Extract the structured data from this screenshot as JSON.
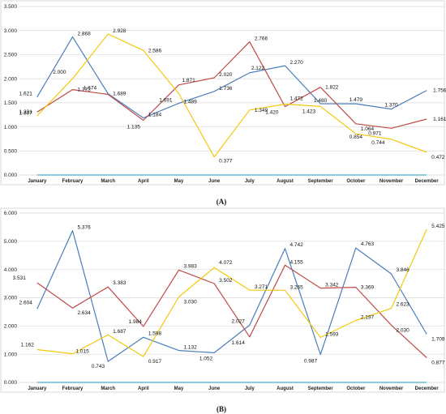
{
  "chart_data": [
    {
      "type": "line",
      "panel_label": "(A)",
      "categories": [
        "January",
        "February",
        "March",
        "April",
        "May",
        "June",
        "July",
        "August",
        "September",
        "October",
        "November",
        "December"
      ],
      "ylim": [
        0,
        3.5
      ],
      "yticks": [
        "0.000",
        "0.500",
        "1.000",
        "1.500",
        "2.000",
        "2.500",
        "3.000",
        "3.500"
      ],
      "grid": true,
      "legend": "none",
      "series": [
        {
          "color": "#4a7ebb",
          "values": [
            1.621,
            2.868,
            1.689,
            1.184,
            1.489,
            1.736,
            2.122,
            2.27,
            1.48,
            1.479,
            1.37,
            1.756
          ]
        },
        {
          "color": "#be4b48",
          "values": [
            1.307,
            1.773,
            1.674,
            1.135,
            1.871,
            2.02,
            2.766,
            1.42,
            1.822,
            1.064,
            0.971,
            1.161
          ]
        },
        {
          "color": "#f2c80f",
          "values": [
            1.231,
            2.0,
            2.928,
            2.586,
            1.691,
            0.377,
            1.349,
            1.472,
            1.423,
            0.854,
            0.744,
            0.472
          ]
        },
        {
          "color": "#4bacc6",
          "values": [
            0,
            0,
            0,
            0,
            0,
            0,
            0,
            0,
            0,
            0,
            0,
            0
          ]
        }
      ]
    },
    {
      "type": "line",
      "panel_label": "(B)",
      "categories": [
        "January",
        "February",
        "March",
        "April",
        "May",
        "June",
        "July",
        "August",
        "September",
        "October",
        "November",
        "December"
      ],
      "ylim": [
        0,
        6
      ],
      "yticks": [
        "0.000",
        "1.000",
        "2.000",
        "3.000",
        "4.000",
        "5.000",
        "6.000"
      ],
      "grid": true,
      "legend": "none",
      "series": [
        {
          "color": "#4a7ebb",
          "values": [
            2.604,
            5.376,
            0.743,
            1.598,
            1.132,
            1.052,
            2.027,
            4.742,
            0.987,
            4.763,
            3.846,
            1.709
          ]
        },
        {
          "color": "#be4b48",
          "values": [
            3.531,
            2.634,
            3.383,
            1.984,
            3.983,
            3.502,
            1.614,
            4.155,
            3.342,
            3.369,
            2.03,
            0.877
          ]
        },
        {
          "color": "#f2c80f",
          "values": [
            1.162,
            1.015,
            1.687,
            0.917,
            3.03,
            4.072,
            3.271,
            3.265,
            1.593,
            2.197,
            2.623,
            5.425
          ]
        },
        {
          "color": "#4bacc6",
          "values": [
            0,
            0,
            0,
            0,
            0,
            0,
            0,
            0,
            0,
            0,
            0,
            0
          ]
        }
      ]
    }
  ]
}
